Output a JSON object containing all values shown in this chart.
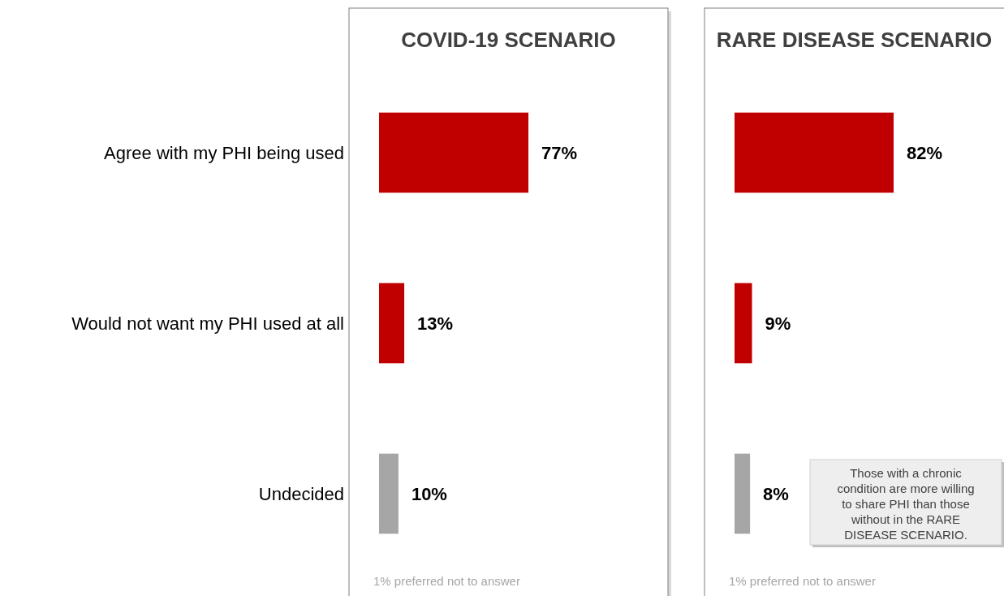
{
  "chart_data": [
    {
      "type": "bar",
      "orientation": "horizontal",
      "title": "COVID-19 SCENARIO",
      "categories": [
        "Agree with my PHI being used",
        "Would not want my PHI used at all",
        "Undecided"
      ],
      "values": [
        77,
        13,
        10
      ],
      "value_labels": [
        "77%",
        "13%",
        "10%"
      ],
      "colors": [
        "#c00000",
        "#c00000",
        "#a6a6a6"
      ],
      "tick_labels": "y",
      "annotations": [
        "1% preferred not to answer"
      ]
    },
    {
      "type": "bar",
      "orientation": "horizontal",
      "title": "RARE DISEASE SCENARIO",
      "categories": [
        null,
        null,
        null
      ],
      "values": [
        82,
        9,
        8
      ],
      "value_labels": [
        "82%",
        "9%",
        "8%"
      ],
      "colors": [
        "#c00000",
        "#c00000",
        "#a6a6a6"
      ],
      "tick_labels": false,
      "annotations": [
        "1% preferred not to answer",
        "Those with a chronic condition are more willing to share PHI than those without in the RARE DISEASE SCENARIO."
      ]
    }
  ]
}
